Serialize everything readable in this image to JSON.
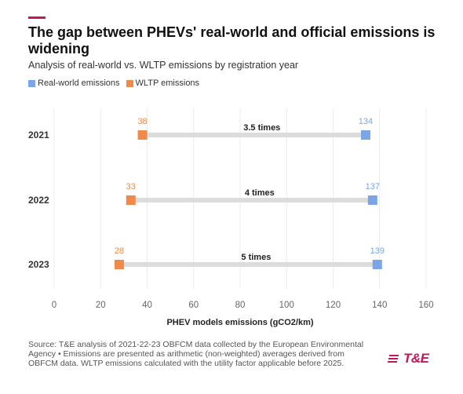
{
  "header": {
    "title": "The gap between PHEVs' real-world and official emissions is widening",
    "subtitle": "Analysis of real-world vs. WLTP emissions by registration year"
  },
  "legend": {
    "real_label": "Real-world emissions",
    "wltp_label": "WLTP emissions"
  },
  "colors": {
    "real": "#7aa6e8",
    "wltp": "#f08a4b",
    "connector": "#dcdcdc",
    "accent": "#c2185b"
  },
  "chart_data": {
    "type": "dumbbell",
    "xlabel": "PHEV models emissions (gCO2/km)",
    "xlim": [
      0,
      160
    ],
    "xticks": [
      0,
      20,
      40,
      60,
      80,
      100,
      120,
      140,
      160
    ],
    "grid": true,
    "legend_position": "top-left",
    "categories": [
      "2021",
      "2022",
      "2023"
    ],
    "series": [
      {
        "name": "Real-world emissions",
        "values": [
          134,
          137,
          139
        ]
      },
      {
        "name": "WLTP emissions",
        "values": [
          38,
          33,
          28
        ]
      }
    ],
    "annotations": [
      "3.5 times",
      "4 times",
      "5 times"
    ]
  },
  "footer": {
    "source": "Source: T&E analysis of 2021-22-23 OBFCM data collected by the European Environmental Agency • Emissions are presented as arithmetic (non-weighted) averages derived from OBFCM data. WLTP emissions calculated with the utility factor applicable before 2025.",
    "logo_text": "T&E"
  }
}
